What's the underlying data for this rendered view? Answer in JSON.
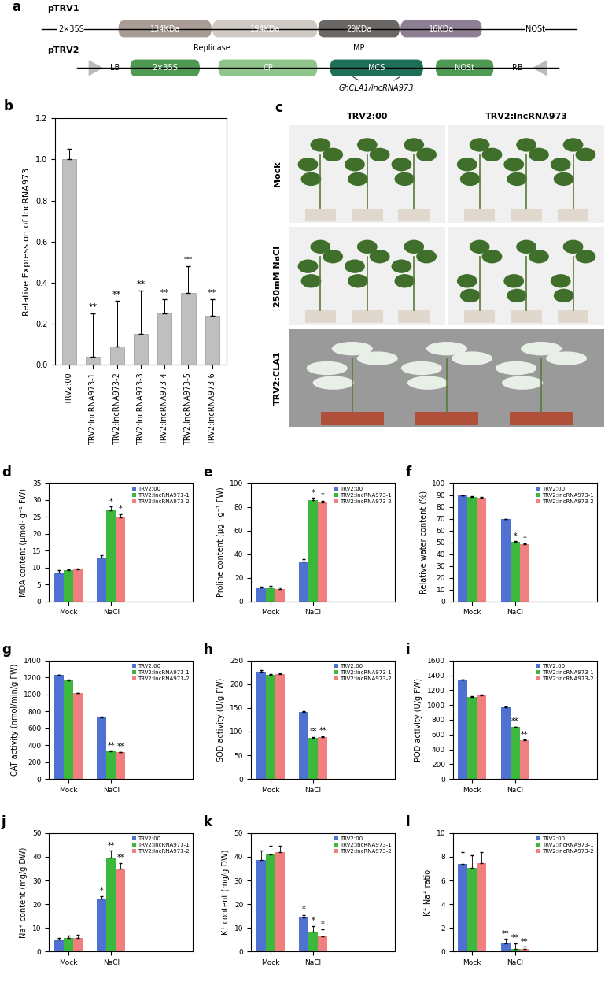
{
  "chart_data": [
    {
      "type": "bar",
      "panel": "b",
      "ylabel": "Relative Expression of lncRNA973",
      "categories": [
        "TRV2:00",
        "TRV2:lncRNA973-1",
        "TRV2:lncRNA973-2",
        "TRV2:lncRNA973-3",
        "TRV2:lncRNA973-4",
        "TRV2:lncRNA973-5",
        "TRV2:lncRNA973-6"
      ],
      "values": [
        1.0,
        0.04,
        0.09,
        0.15,
        0.25,
        0.35,
        0.24
      ],
      "errors": [
        0.05,
        0.21,
        0.22,
        0.21,
        0.07,
        0.13,
        0.08
      ],
      "significance": [
        null,
        "**",
        "**",
        "**",
        "**",
        "**",
        "**"
      ],
      "color": "#bfbfbf",
      "ylim": [
        0,
        1.2
      ],
      "yticks": [
        {
          "value": 0,
          "label": "0.0"
        },
        0.2,
        0.4,
        0.6,
        0.8,
        {
          "value": 1,
          "label": "1.0"
        },
        1.2
      ]
    },
    {
      "type": "bar",
      "panel": "d",
      "ylabel": "MDA content (μmol· g⁻¹ FW)",
      "categories": [
        "Mock",
        "NaCl"
      ],
      "legend": "upper right",
      "ylim": [
        0,
        35
      ],
      "yticks": [
        0,
        5,
        10,
        15,
        20,
        25,
        30,
        35
      ],
      "series": [
        {
          "name": "TRV2:00",
          "color": "#4f72d2",
          "values": [
            8.6,
            12.9
          ],
          "errors": [
            0.6,
            0.7
          ],
          "significance": [
            null,
            null
          ]
        },
        {
          "name": "TRV2:lncRNA973-1",
          "color": "#3cb83c",
          "values": [
            9.3,
            26.9
          ],
          "errors": [
            0.2,
            1.2
          ],
          "significance": [
            null,
            "*"
          ]
        },
        {
          "name": "TRV2:lncRNA973-2",
          "color": "#f27f7f",
          "values": [
            9.6,
            24.9
          ],
          "errors": [
            0.2,
            1.0
          ],
          "significance": [
            null,
            "*"
          ]
        }
      ]
    },
    {
      "type": "bar",
      "panel": "e",
      "ylabel": "Proline content (μg · g⁻¹ FW)",
      "categories": [
        "Mock",
        "NaCl"
      ],
      "legend": "upper right",
      "ylim": [
        0,
        100
      ],
      "yticks": [
        0,
        20,
        40,
        60,
        80,
        100
      ],
      "series": [
        {
          "name": "TRV2:00",
          "color": "#4f72d2",
          "values": [
            11.5,
            34
          ],
          "errors": [
            1,
            2
          ],
          "significance": [
            null,
            null
          ]
        },
        {
          "name": "TRV2:lncRNA973-1",
          "color": "#3cb83c",
          "values": [
            12,
            86
          ],
          "errors": [
            1,
            1.5
          ],
          "significance": [
            null,
            "*"
          ]
        },
        {
          "name": "TRV2:lncRNA973-2",
          "color": "#f27f7f",
          "values": [
            10.5,
            83.5
          ],
          "errors": [
            1,
            1.5
          ],
          "significance": [
            null,
            "*"
          ]
        }
      ]
    },
    {
      "type": "bar",
      "panel": "f",
      "ylabel": "Relative water content (%)",
      "categories": [
        "Mock",
        "NaCl"
      ],
      "legend": "upper right",
      "ylim": [
        0,
        100
      ],
      "yticks": [
        0,
        10,
        20,
        30,
        40,
        50,
        60,
        70,
        80,
        90,
        100
      ],
      "series": [
        {
          "name": "TRV2:00",
          "color": "#4f72d2",
          "values": [
            89.5,
            69.5
          ],
          "errors": [
            0.5,
            0.5
          ],
          "significance": [
            null,
            null
          ]
        },
        {
          "name": "TRV2:lncRNA973-1",
          "color": "#3cb83c",
          "values": [
            88.5,
            50.5
          ],
          "errors": [
            0.5,
            0.5
          ],
          "significance": [
            null,
            "*"
          ]
        },
        {
          "name": "TRV2:lncRNA973-2",
          "color": "#f27f7f",
          "values": [
            88,
            48.5
          ],
          "errors": [
            0.5,
            0.5
          ],
          "significance": [
            null,
            "*"
          ]
        }
      ]
    },
    {
      "type": "bar",
      "panel": "g",
      "ylabel": "CAT activity (nmol/min/g FW)",
      "categories": [
        "Mock",
        "NaCl"
      ],
      "legend": "upper right",
      "ylim": [
        0,
        1400
      ],
      "yticks": [
        0,
        200,
        400,
        600,
        800,
        1000,
        1200,
        1400
      ],
      "series": [
        {
          "name": "TRV2:00",
          "color": "#4f72d2",
          "values": [
            1230,
            730
          ],
          "errors": [
            5,
            5
          ],
          "significance": [
            null,
            null
          ]
        },
        {
          "name": "TRV2:lncRNA973-1",
          "color": "#3cb83c",
          "values": [
            1170,
            330
          ],
          "errors": [
            5,
            5
          ],
          "significance": [
            null,
            "**"
          ]
        },
        {
          "name": "TRV2:lncRNA973-2",
          "color": "#f27f7f",
          "values": [
            1015,
            315
          ],
          "errors": [
            5,
            5
          ],
          "significance": [
            null,
            "**"
          ]
        }
      ]
    },
    {
      "type": "bar",
      "panel": "h",
      "ylabel": "SOD activity (U/g FW)",
      "categories": [
        "Mock",
        "NaCl"
      ],
      "legend": "upper right",
      "ylim": [
        0,
        250
      ],
      "yticks": [
        0,
        50,
        100,
        150,
        200,
        250
      ],
      "series": [
        {
          "name": "TRV2:00",
          "color": "#4f72d2",
          "values": [
            226,
            141
          ],
          "errors": [
            3,
            2
          ],
          "significance": [
            null,
            null
          ]
        },
        {
          "name": "TRV2:lncRNA973-1",
          "color": "#3cb83c",
          "values": [
            219,
            87
          ],
          "errors": [
            2,
            2
          ],
          "significance": [
            null,
            "**"
          ]
        },
        {
          "name": "TRV2:lncRNA973-2",
          "color": "#f27f7f",
          "values": [
            221,
            88
          ],
          "errors": [
            2,
            2
          ],
          "significance": [
            null,
            "**"
          ]
        }
      ]
    },
    {
      "type": "bar",
      "panel": "i",
      "ylabel": "POD activity (U/g FW)",
      "categories": [
        "Mock",
        "NaCl"
      ],
      "legend": "upper right",
      "ylim": [
        0,
        1600
      ],
      "yticks": [
        0,
        200,
        400,
        600,
        800,
        1000,
        1200,
        1400,
        1600
      ],
      "series": [
        {
          "name": "TRV2:00",
          "color": "#4f72d2",
          "values": [
            1340,
            975
          ],
          "errors": [
            6,
            6
          ],
          "significance": [
            null,
            null
          ]
        },
        {
          "name": "TRV2:lncRNA973-1",
          "color": "#3cb83c",
          "values": [
            1110,
            700
          ],
          "errors": [
            6,
            6
          ],
          "significance": [
            null,
            "**"
          ]
        },
        {
          "name": "TRV2:lncRNA973-2",
          "color": "#f27f7f",
          "values": [
            1135,
            525
          ],
          "errors": [
            6,
            6
          ],
          "significance": [
            null,
            "**"
          ]
        }
      ]
    },
    {
      "type": "bar",
      "panel": "j",
      "ylabel": "Na⁺ content (mg/g DW)",
      "categories": [
        "Mock",
        "NaCl"
      ],
      "legend": "upper right",
      "ylim": [
        0,
        50
      ],
      "yticks": [
        0,
        10,
        20,
        30,
        40,
        50
      ],
      "series": [
        {
          "name": "TRV2:00",
          "color": "#4f72d2",
          "values": [
            5.2,
            22.5
          ],
          "errors": [
            0.6,
            1
          ],
          "significance": [
            null,
            "*"
          ]
        },
        {
          "name": "TRV2:lncRNA973-1",
          "color": "#3cb83c",
          "values": [
            5.8,
            39.5
          ],
          "errors": [
            1,
            3
          ],
          "significance": [
            null,
            "**"
          ]
        },
        {
          "name": "TRV2:lncRNA973-2",
          "color": "#f27f7f",
          "values": [
            5.8,
            35
          ],
          "errors": [
            1.2,
            2.5
          ],
          "significance": [
            null,
            "**"
          ]
        }
      ]
    },
    {
      "type": "bar",
      "panel": "k",
      "ylabel": "K⁺ content (mg/g DW)",
      "categories": [
        "Mock",
        "NaCl"
      ],
      "legend": "upper right",
      "ylim": [
        0,
        50
      ],
      "yticks": [
        0,
        10,
        20,
        30,
        40,
        50
      ],
      "series": [
        {
          "name": "TRV2:00",
          "color": "#4f72d2",
          "values": [
            38.5,
            14.5
          ],
          "errors": [
            4,
            1
          ],
          "significance": [
            null,
            "*"
          ]
        },
        {
          "name": "TRV2:lncRNA973-1",
          "color": "#3cb83c",
          "values": [
            41,
            8.3
          ],
          "errors": [
            3.5,
            2.5
          ],
          "significance": [
            null,
            "*"
          ]
        },
        {
          "name": "TRV2:lncRNA973-2",
          "color": "#f27f7f",
          "values": [
            42,
            6.3
          ],
          "errors": [
            2.8,
            3
          ],
          "significance": [
            null,
            "*"
          ]
        }
      ]
    },
    {
      "type": "bar",
      "panel": "l",
      "ylabel": "K⁺:Na⁺ ratio",
      "categories": [
        "Mock",
        "NaCl"
      ],
      "legend": "upper right",
      "ylim": [
        0,
        10
      ],
      "yticks": [
        0,
        2,
        4,
        6,
        8,
        10
      ],
      "series": [
        {
          "name": "TRV2:00",
          "color": "#4f72d2",
          "values": [
            7.4,
            0.65
          ],
          "errors": [
            1,
            0.4
          ],
          "significance": [
            null,
            "**"
          ]
        },
        {
          "name": "TRV2:lncRNA973-1",
          "color": "#3cb83c",
          "values": [
            7.1,
            0.2
          ],
          "errors": [
            1,
            0.5
          ],
          "significance": [
            null,
            "**"
          ]
        },
        {
          "name": "TRV2:lncRNA973-2",
          "color": "#f27f7f",
          "values": [
            7.5,
            0.18
          ],
          "errors": [
            0.9,
            0.2
          ],
          "significance": [
            null,
            "**"
          ]
        }
      ]
    }
  ],
  "diagram": {
    "panel": "a",
    "constructs": [
      {
        "name": "pTRV1",
        "elements": [
          "2×35S",
          "134KDa",
          "194KDa",
          "29KDa",
          "16KDa",
          "NOSt"
        ],
        "notes": [
          "Replicase",
          "MP"
        ]
      },
      {
        "name": "pTRV2",
        "elements": [
          "LB",
          "2×35S",
          "CP",
          "MCS",
          "NOSt",
          "RB"
        ],
        "notes": [
          "GhCLA1/lncRNA973"
        ]
      }
    ]
  },
  "photos": {
    "panel": "c",
    "columns": [
      "TRV2:00",
      "TRV2:lncRNA973"
    ],
    "rows": [
      "Mock",
      "250mM NaCl"
    ],
    "bottom_row": "TRV2:CLA1"
  }
}
